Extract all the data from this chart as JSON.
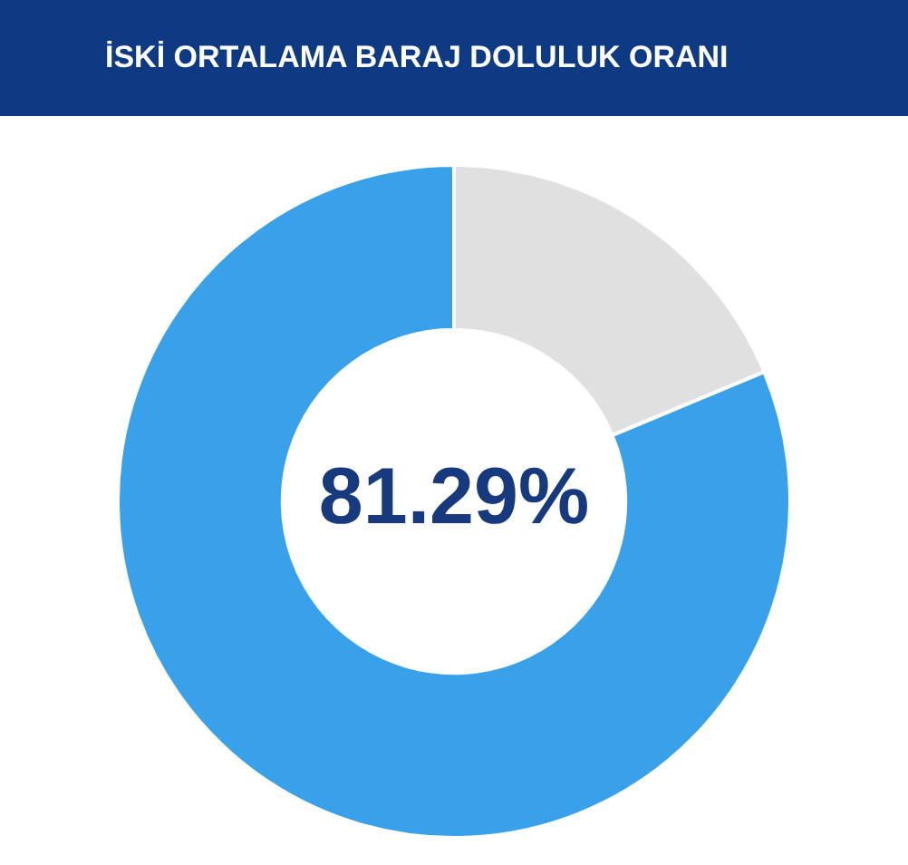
{
  "chart_data": {
    "type": "donut",
    "title": "İSKİ ORTALAMA BARAJ DOLULUK ORANI",
    "categories": [
      null,
      null
    ],
    "values": [
      18.71,
      81.29
    ],
    "colors": [
      "#e0e0e0",
      "#38a1e9"
    ],
    "value_labels": [
      null,
      "81.29%"
    ],
    "legend": false
  }
}
